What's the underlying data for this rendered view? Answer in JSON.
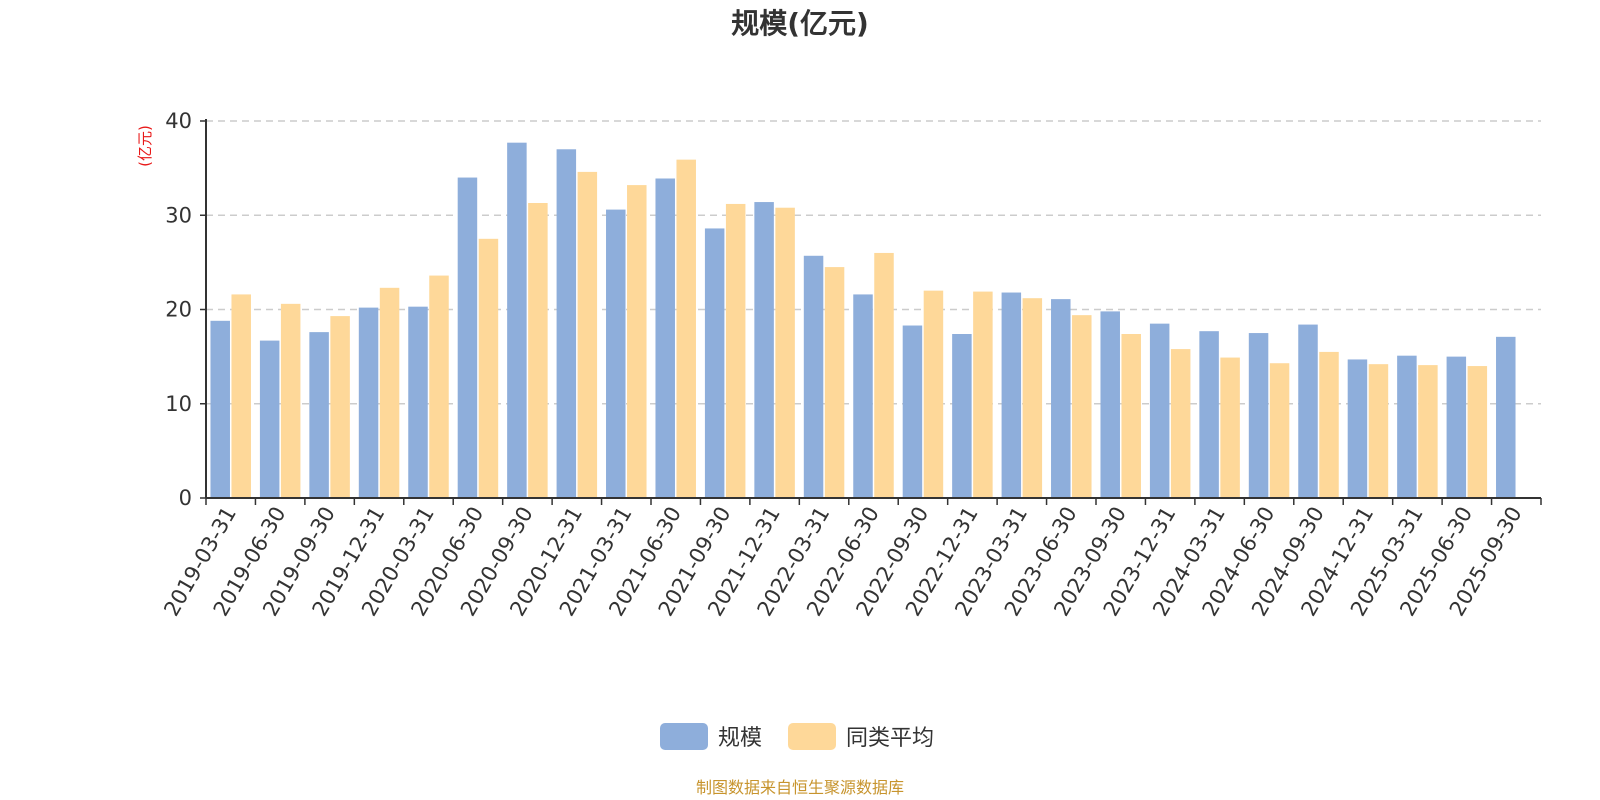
{
  "chart_data": {
    "type": "bar",
    "title": "规模(亿元)",
    "ylabel": "(亿元)",
    "xlabel": "",
    "ylim": [
      0,
      40
    ],
    "yticks": [
      0,
      10,
      20,
      30,
      40
    ],
    "grid": true,
    "legend_position": "bottom-center",
    "categories": [
      "2019-03-31",
      "2019-06-30",
      "2019-09-30",
      "2019-12-31",
      "2020-03-31",
      "2020-06-30",
      "2020-09-30",
      "2020-12-31",
      "2021-03-31",
      "2021-06-30",
      "2021-09-30",
      "2021-12-31",
      "2022-03-31",
      "2022-06-30",
      "2022-09-30",
      "2022-12-31",
      "2023-03-31",
      "2023-06-30",
      "2023-09-30",
      "2023-12-31",
      "2024-03-31",
      "2024-06-30",
      "2024-09-30",
      "2024-12-31",
      "2025-03-31",
      "2025-06-30",
      "2025-09-30"
    ],
    "series": [
      {
        "name": "规模",
        "color": "#8eaedb",
        "values": [
          18.8,
          16.7,
          17.6,
          20.2,
          20.3,
          34.0,
          37.7,
          37.0,
          30.6,
          33.9,
          28.6,
          31.4,
          25.7,
          21.6,
          18.3,
          17.4,
          21.8,
          21.1,
          19.8,
          18.5,
          17.7,
          17.5,
          18.4,
          14.7,
          15.1,
          15.0,
          17.1
        ]
      },
      {
        "name": "同类平均",
        "color": "#fed899",
        "values": [
          21.6,
          20.6,
          19.3,
          22.3,
          23.6,
          27.5,
          31.3,
          34.6,
          33.2,
          35.9,
          31.2,
          30.8,
          24.5,
          26.0,
          22.0,
          21.9,
          21.2,
          19.4,
          17.4,
          15.8,
          14.9,
          14.3,
          15.5,
          14.2,
          14.1,
          14.0,
          null
        ]
      }
    ]
  },
  "source_text": "制图数据来自恒生聚源数据库",
  "colors": {
    "axis": "#333333",
    "grid": "#cccccc",
    "unit": "#e81818",
    "source": "#c7942d"
  }
}
